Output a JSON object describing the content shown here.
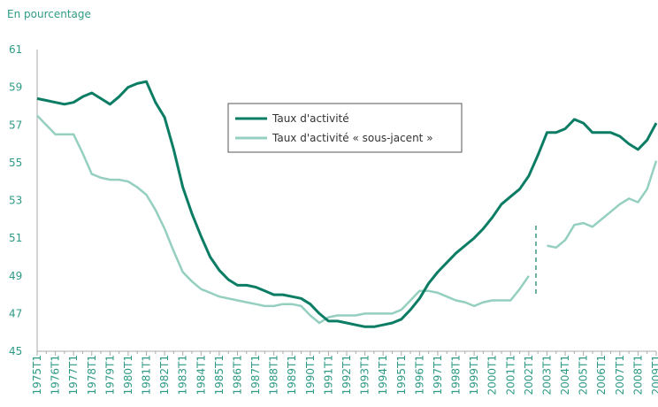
{
  "chart_data": {
    "type": "line",
    "title": "En pourcentage",
    "categories": [
      "1975T1",
      null,
      "1976T1",
      null,
      "1977T1",
      null,
      "1978T1",
      null,
      "1979T1",
      null,
      "1980T1",
      null,
      "1981T1",
      null,
      "1982T1",
      null,
      "1983T1",
      null,
      "1984T1",
      null,
      "1985T1",
      null,
      "1986T1",
      null,
      "1987T1",
      null,
      "1988T1",
      null,
      "1989T1",
      null,
      "1990T1",
      null,
      "1991T1",
      null,
      "1992T1",
      null,
      "1993T1",
      null,
      "1994T1",
      null,
      "1995T1",
      null,
      "1996T1",
      null,
      "1997T1",
      null,
      "1998T1",
      null,
      "1999T1",
      null,
      "2000T1",
      null,
      "2001T1",
      null,
      "2002T1",
      null,
      "2003T1",
      null,
      "2004T1",
      null,
      "2005T1",
      null,
      "2006T1",
      null,
      "2007T1",
      null,
      "2008T1",
      null,
      "2009T1"
    ],
    "series": [
      {
        "name": "Taux d'activité",
        "color": "#0b7d64",
        "values": [
          58.4,
          58.3,
          58.2,
          58.1,
          58.2,
          58.5,
          58.7,
          58.4,
          58.1,
          58.5,
          59.0,
          59.2,
          59.3,
          58.2,
          57.4,
          55.7,
          53.7,
          52.3,
          51.1,
          50.0,
          49.3,
          48.8,
          48.5,
          48.5,
          48.4,
          48.2,
          48.0,
          48.0,
          47.9,
          47.8,
          47.5,
          47.0,
          46.6,
          46.6,
          46.5,
          46.4,
          46.3,
          46.3,
          46.4,
          46.5,
          46.7,
          47.2,
          47.8,
          48.6,
          49.2,
          49.7,
          50.2,
          50.6,
          51.0,
          51.5,
          52.1,
          52.8,
          53.2,
          53.6,
          54.3,
          55.4,
          56.6,
          56.6,
          56.8,
          57.3,
          57.1,
          56.6,
          56.6,
          56.6,
          56.4,
          56.0,
          55.7,
          56.2,
          57.1
        ]
      },
      {
        "name": "Taux d'activité « sous-jacent »",
        "color": "#94cfc0",
        "values": [
          57.5,
          57.0,
          56.5,
          56.5,
          56.5,
          55.5,
          54.4,
          54.2,
          54.1,
          54.1,
          54.0,
          53.7,
          53.3,
          52.5,
          51.5,
          50.3,
          49.2,
          48.7,
          48.3,
          48.1,
          47.9,
          47.8,
          47.7,
          47.6,
          47.5,
          47.4,
          47.4,
          47.5,
          47.5,
          47.4,
          46.9,
          46.5,
          46.8,
          46.9,
          46.9,
          46.9,
          47.0,
          47.0,
          47.0,
          47.0,
          47.2,
          47.7,
          48.2,
          48.2,
          48.1,
          47.9,
          47.7,
          47.6,
          47.4,
          47.6,
          47.7,
          47.7,
          47.7,
          48.3,
          49.0,
          null,
          50.6,
          50.5,
          50.9,
          51.7,
          51.8,
          51.6,
          52.0,
          52.4,
          52.8,
          53.1,
          52.9,
          53.6,
          55.1
        ]
      }
    ],
    "ylim": [
      45,
      61
    ],
    "yticks": [
      45,
      47,
      49,
      51,
      53,
      55,
      57,
      59,
      61
    ],
    "grid": false,
    "legend": "top-center"
  }
}
